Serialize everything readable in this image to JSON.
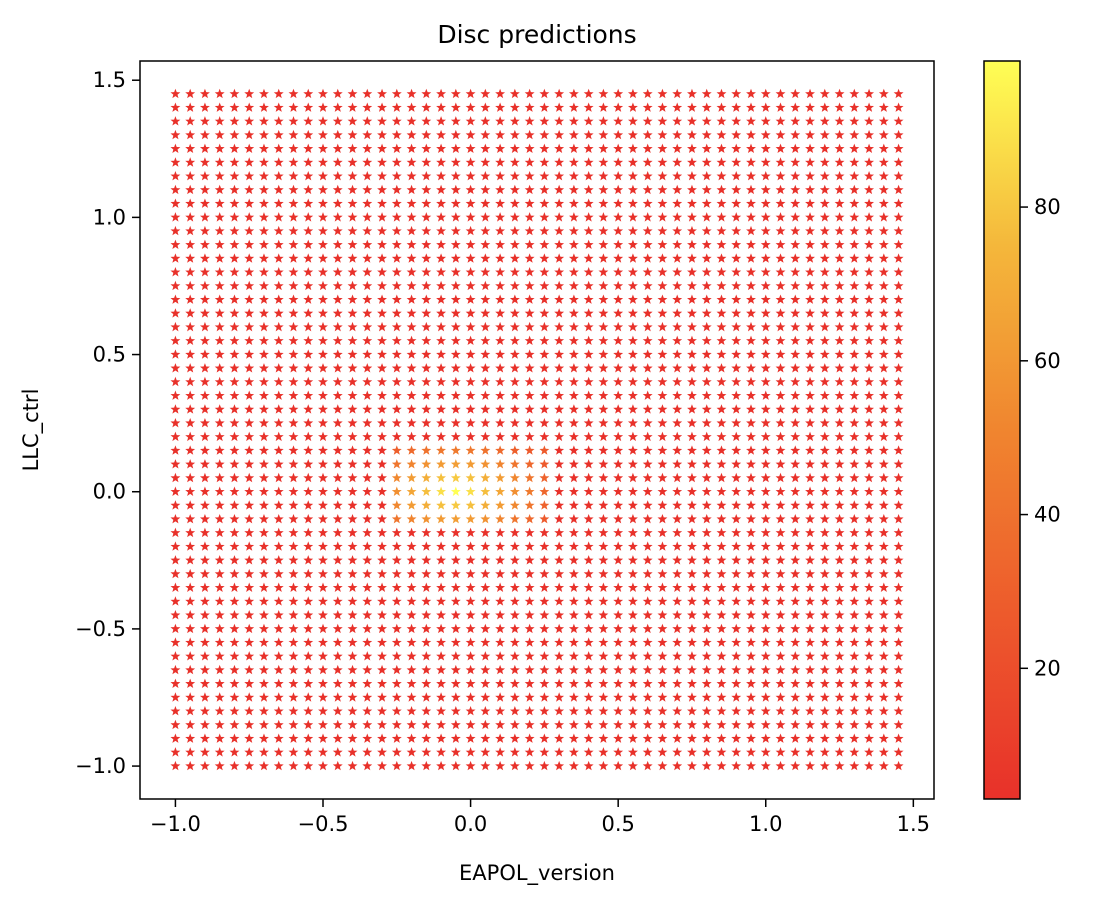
{
  "chart_data": {
    "type": "scatter",
    "title": "Disc predictions",
    "xlabel": "EAPOL_version",
    "ylabel": "LLC_ctrl",
    "marker": "star",
    "grid": false,
    "xlim": [
      -1.12,
      1.57
    ],
    "ylim": [
      -1.12,
      1.57
    ],
    "x_ticks": [
      {
        "value": -1.0,
        "label": "−1.0"
      },
      {
        "value": -0.5,
        "label": "−0.5"
      },
      {
        "value": 0.0,
        "label": "0.0"
      },
      {
        "value": 0.5,
        "label": "0.5"
      },
      {
        "value": 1.0,
        "label": "1.0"
      },
      {
        "value": 1.5,
        "label": "1.5"
      }
    ],
    "y_ticks": [
      {
        "value": -1.0,
        "label": "−1.0"
      },
      {
        "value": -0.5,
        "label": "−0.5"
      },
      {
        "value": 0.0,
        "label": "0.0"
      },
      {
        "value": 0.5,
        "label": "0.5"
      },
      {
        "value": 1.0,
        "label": "1.0"
      },
      {
        "value": 1.5,
        "label": "1.5"
      }
    ],
    "grid_points": {
      "x_start": -1.0,
      "x_end": 1.45,
      "x_step": 0.05,
      "y_start": -1.0,
      "y_end": 1.45,
      "y_step": 0.05
    },
    "values": {
      "baseline": 3,
      "peak": 99,
      "peak_center": [
        -0.05,
        0.0
      ],
      "peak_x_range": [
        -0.25,
        0.25
      ],
      "peak_y_range": [
        -0.1,
        0.15
      ],
      "note_source": "value surface peaks near origin"
    },
    "colorbar": {
      "range": [
        3,
        99
      ],
      "colors": [
        "#e8312a",
        "#ed5a2c",
        "#f0852f",
        "#f4b73b",
        "#ffff55"
      ],
      "ticks": [
        {
          "value": 20,
          "label": "20"
        },
        {
          "value": 40,
          "label": "40"
        },
        {
          "value": 60,
          "label": "60"
        },
        {
          "value": 80,
          "label": "80"
        }
      ]
    }
  }
}
